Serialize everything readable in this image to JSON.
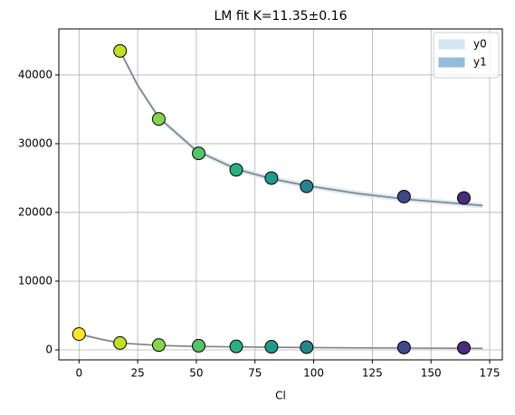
{
  "chart_data": {
    "type": "scatter",
    "title": "LM fit K=11.35±0.16",
    "xlabel": "Cl",
    "xlim": [
      -8.6,
      180.4
    ],
    "ylim": [
      -1450,
      46700
    ],
    "xticks": [
      0,
      25,
      50,
      75,
      100,
      125,
      150,
      175
    ],
    "yticks": [
      0,
      10000,
      20000,
      30000,
      40000
    ],
    "grid": true,
    "legend": "upper right",
    "series": [
      {
        "x": [
          0,
          17.5,
          34,
          51,
          67,
          82,
          97,
          138.5,
          164
        ],
        "values": [
          2300,
          1000,
          700,
          600,
          500,
          450,
          400,
          350,
          300
        ],
        "colors": [
          "#fde725",
          "#c2df23",
          "#86d549",
          "#52c569",
          "#2ab07f",
          "#1e9b8a",
          "#25858e",
          "#3e4989",
          "#472d7b"
        ]
      },
      {
        "x": [
          17.5,
          34,
          51,
          67,
          82,
          97,
          138.5,
          164
        ],
        "values": [
          43500,
          33600,
          28600,
          26200,
          25000,
          23800,
          22300,
          22100
        ],
        "colors": [
          "#c2df23",
          "#86d549",
          "#52c569",
          "#2ab07f",
          "#1e9b8a",
          "#25858e",
          "#3e4989",
          "#472d7b"
        ]
      }
    ],
    "fits": [
      {
        "color": "#808080",
        "x": [
          0,
          10,
          17.5,
          34,
          50,
          75,
          100,
          140,
          172
        ],
        "values": [
          2300,
          1500,
          1000,
          650,
          500,
          400,
          330,
          260,
          220
        ]
      },
      {
        "color": "#808080",
        "x": [
          17.5,
          25,
          34,
          50,
          67,
          82,
          97,
          120,
          140,
          172
        ],
        "values": [
          43500,
          38500,
          33800,
          29000,
          26300,
          24900,
          23900,
          22700,
          21900,
          21000
        ]
      }
    ],
    "bands": [
      {
        "name": "y0",
        "color": "#d2e5f1",
        "x": [
          17.5,
          25,
          34,
          50,
          67,
          82,
          97,
          120,
          140,
          172
        ],
        "lower": [
          43100,
          38100,
          33400,
          28600,
          25900,
          24500,
          23500,
          22300,
          21500,
          20600
        ],
        "upper": [
          43900,
          38900,
          34200,
          29400,
          26700,
          25300,
          24300,
          23100,
          22300,
          21400
        ]
      },
      {
        "name": "y1",
        "color": "#93bcdc",
        "x": [
          0,
          10,
          17.5,
          34,
          50,
          75,
          100,
          140,
          172
        ],
        "lower": [
          2150,
          1380,
          900,
          560,
          420,
          330,
          270,
          210,
          170
        ],
        "upper": [
          2450,
          1620,
          1100,
          740,
          580,
          470,
          390,
          310,
          270
        ]
      }
    ]
  }
}
